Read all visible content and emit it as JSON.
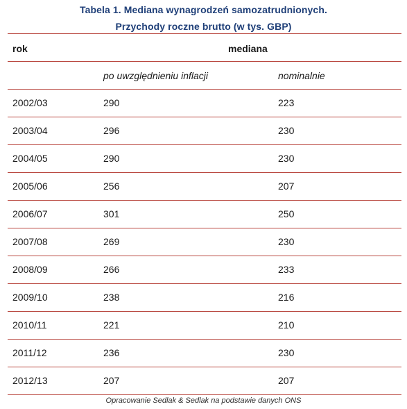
{
  "title": {
    "line1": "Tabela 1. Mediana wynagrodzeń samozatrudnionych.",
    "line2": "Przychody roczne brutto (w tys. GBP)"
  },
  "header": {
    "rok": "rok",
    "mediana": "mediana"
  },
  "subheader": {
    "inflation": "po uwzględnieniu inflacji",
    "nominal": "nominalnie"
  },
  "rows": [
    {
      "rok": "2002/03",
      "inflation": "290",
      "nominal": "223"
    },
    {
      "rok": "2003/04",
      "inflation": "296",
      "nominal": "230"
    },
    {
      "rok": "2004/05",
      "inflation": "290",
      "nominal": "230"
    },
    {
      "rok": "2005/06",
      "inflation": "256",
      "nominal": "207"
    },
    {
      "rok": "2006/07",
      "inflation": "301",
      "nominal": "250"
    },
    {
      "rok": "2007/08",
      "inflation": "269",
      "nominal": "230"
    },
    {
      "rok": "2008/09",
      "inflation": "266",
      "nominal": "233"
    },
    {
      "rok": "2009/10",
      "inflation": "238",
      "nominal": "216"
    },
    {
      "rok": "2010/11",
      "inflation": "221",
      "nominal": "210"
    },
    {
      "rok": "2011/12",
      "inflation": "236",
      "nominal": "230"
    },
    {
      "rok": "2012/13",
      "inflation": "207",
      "nominal": "207"
    }
  ],
  "footer": "Opracowanie Sedlak & Sedlak na podstawie danych ONS",
  "colors": {
    "title": "#1f3f78",
    "rule": "#b9473f"
  }
}
